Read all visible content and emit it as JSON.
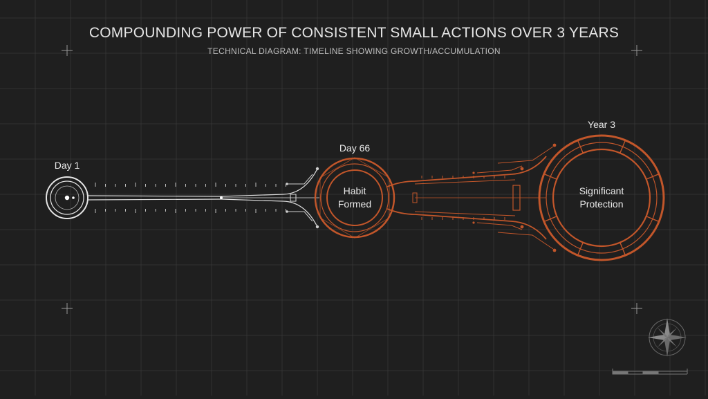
{
  "title": "COMPOUNDING POWER OF CONSISTENT SMALL ACTIONS OVER 3 YEARS",
  "subtitle": "TECHNICAL DIAGRAM: TIMELINE SHOWING GROWTH/ACCUMULATION",
  "nodes": [
    {
      "label": "Day 1",
      "inner_lines": []
    },
    {
      "label": "Day 66",
      "inner_lines": [
        "Habit",
        "Formed"
      ]
    },
    {
      "label": "Year 3",
      "inner_lines": [
        "Significant",
        "Protection"
      ]
    }
  ],
  "colors": {
    "background": "#1f1f1f",
    "grid": "#3a3a3a",
    "early_line": "#e0e0e0",
    "growth_accent": "#c2562a"
  },
  "icons": [
    "crosshair-icon",
    "compass-rose-icon",
    "scale-bar-icon"
  ]
}
